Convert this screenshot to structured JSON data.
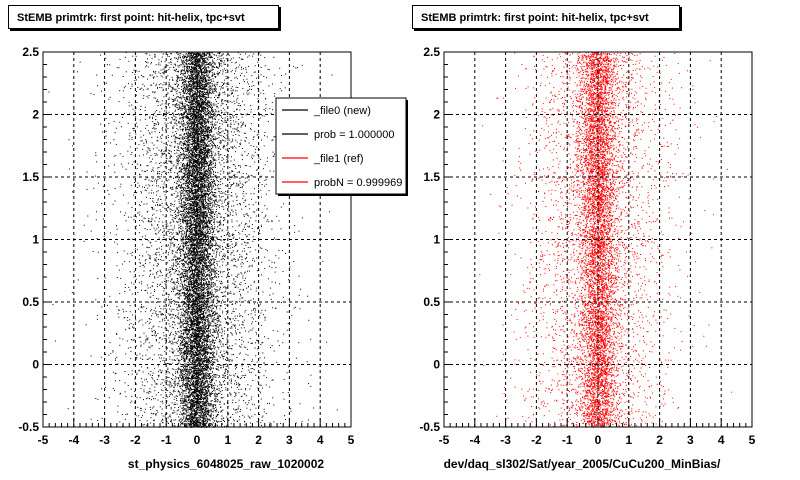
{
  "panels": [
    {
      "title": "StEMB primtrk: first point: hit-helix, tpc+svt",
      "xlabel": "st_physics_6048025_raw_1020002",
      "color": "#000000"
    },
    {
      "title": "StEMB primtrk: first point: hit-helix, tpc+svt",
      "xlabel": "dev/daq_sl302/Sat/year_2005/CuCu200_MinBias/",
      "color": "#ff0000"
    }
  ],
  "legend": {
    "placement": "top-right of left panel",
    "entries": [
      {
        "label": "_file0 (new)",
        "color": "#000000"
      },
      {
        "label": "prob = 1.000000",
        "color": "#000000"
      },
      {
        "label": "_file1 (ref)",
        "color": "#ff0000"
      },
      {
        "label": "probN = 0.999969",
        "color": "#ff0000"
      }
    ]
  },
  "chart_data": [
    {
      "type": "scatter",
      "title": "StEMB primtrk: first point: hit-helix, tpc+svt",
      "xlabel": "st_physics_6048025_raw_1020002",
      "ylabel": "",
      "xlim": [
        -5,
        5
      ],
      "ylim": [
        -0.5,
        2.5
      ],
      "xticks": [
        -5,
        -4,
        -3,
        -2,
        -1,
        0,
        1,
        2,
        3,
        4,
        5
      ],
      "yticks": [
        -0.5,
        0,
        0.5,
        1,
        1.5,
        2,
        2.5
      ],
      "grid": true,
      "series": [
        {
          "color": "#000000",
          "distribution": {
            "x_center": 0.0,
            "x_core_sigma": 0.3,
            "x_tail_sigma": 1.3,
            "y_range": [
              -0.5,
              2.5
            ]
          }
        }
      ]
    },
    {
      "type": "scatter",
      "title": "StEMB primtrk: first point: hit-helix, tpc+svt",
      "xlabel": "dev/daq_sl302/Sat/year_2005/CuCu200_MinBias/",
      "ylabel": "",
      "xlim": [
        -5,
        5
      ],
      "ylim": [
        -0.5,
        2.5
      ],
      "xticks": [
        -5,
        -4,
        -3,
        -2,
        -1,
        0,
        1,
        2,
        3,
        4,
        5
      ],
      "yticks": [
        -0.5,
        0,
        0.5,
        1,
        1.5,
        2,
        2.5
      ],
      "grid": true,
      "series": [
        {
          "color": "#ff0000",
          "distribution": {
            "x_center": 0.0,
            "x_core_sigma": 0.3,
            "x_tail_sigma": 1.2,
            "y_range": [
              -0.5,
              2.5
            ]
          }
        }
      ]
    }
  ]
}
